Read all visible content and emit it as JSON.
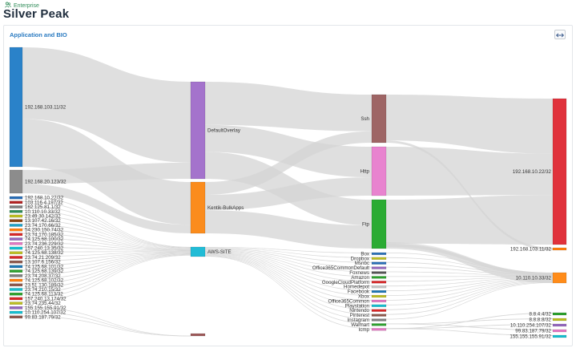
{
  "breadcrumb": {
    "label": "Enterprise",
    "icon": "users-icon"
  },
  "page": {
    "title": "Silver Peak"
  },
  "panel": {
    "title": "Application and BIO",
    "expand_icon": "expand-arrows-icon"
  },
  "chart_data": {
    "type": "sankey",
    "title": "Application and BIO",
    "columns": [
      {
        "name": "source",
        "nodes": [
          {
            "id": "s1",
            "label": "192.168.103.11/32",
            "color": "#2a82c9",
            "value": 100
          },
          {
            "id": "s2",
            "label": "192.168.20.123/32",
            "color": "#8c8c8c",
            "value": 20
          },
          {
            "id": "s3",
            "label": "192.168.10.22/32",
            "color": "#2a6db5",
            "value": 1
          },
          {
            "id": "s4",
            "label": "103.116.4.197/32",
            "color": "#b22222",
            "value": 1
          },
          {
            "id": "s5",
            "label": "162.125.81.1/32",
            "color": "#7f7f7f",
            "value": 1
          },
          {
            "id": "s6",
            "label": "10.110.10.33/32",
            "color": "#2e8b57",
            "value": 1
          },
          {
            "id": "s7",
            "label": "23.49.30.142/32",
            "color": "#bcbd22",
            "value": 1
          },
          {
            "id": "s8",
            "label": "13.107.42.16/32",
            "color": "#8b4513",
            "value": 1
          },
          {
            "id": "s9",
            "label": "23.74.170.66/32",
            "color": "#1fa2c7",
            "value": 1
          },
          {
            "id": "s10",
            "label": "54.230.150.74/32",
            "color": "#ff7f0e",
            "value": 1
          },
          {
            "id": "s11",
            "label": "23.74.170.185/32",
            "color": "#d62728",
            "value": 1
          },
          {
            "id": "s12",
            "label": "74.125.68.100/32",
            "color": "#9467bd",
            "value": 1
          },
          {
            "id": "s13",
            "label": "23.74.236.229/32",
            "color": "#e377c2",
            "value": 1
          },
          {
            "id": "s14",
            "label": "157.240.13.35/32",
            "color": "#17becf",
            "value": 1
          },
          {
            "id": "s15",
            "label": "74.125.68.138/32",
            "color": "#bcbd22",
            "value": 1
          },
          {
            "id": "s16",
            "label": "23.74.21.209/32",
            "color": "#d62728",
            "value": 1
          },
          {
            "id": "s17",
            "label": "13.107.6.156/32",
            "color": "#8c564b",
            "value": 1
          },
          {
            "id": "s18",
            "label": "74.125.68.101/32",
            "color": "#1f77b4",
            "value": 1
          },
          {
            "id": "s19",
            "label": "74.125.68.139/32",
            "color": "#2ca02c",
            "value": 1
          },
          {
            "id": "s20",
            "label": "23.74.208.37/32",
            "color": "#7f7f7f",
            "value": 1
          },
          {
            "id": "s21",
            "label": "74.125.68.102/32",
            "color": "#ff7f0e",
            "value": 1
          },
          {
            "id": "s22",
            "label": "23.51.130.189/32",
            "color": "#8c564b",
            "value": 1
          },
          {
            "id": "s23",
            "label": "23.74.210.15/32",
            "color": "#17becf",
            "value": 1
          },
          {
            "id": "s24",
            "label": "74.125.68.113/32",
            "color": "#2ca02c",
            "value": 1
          },
          {
            "id": "s25",
            "label": "157.240.13.174/32",
            "color": "#d62728",
            "value": 1
          },
          {
            "id": "s26",
            "label": "23.74.235.44/32",
            "color": "#bcbd22",
            "value": 1
          },
          {
            "id": "s27",
            "label": "155.155.155.91/32",
            "color": "#9467bd",
            "value": 1
          },
          {
            "id": "s28",
            "label": "10.110.254.107/32",
            "color": "#17becf",
            "value": 1
          },
          {
            "id": "s29",
            "label": "99.83.187.79/32",
            "color": "#8c564b",
            "value": 1
          }
        ]
      },
      {
        "name": "overlay",
        "nodes": [
          {
            "id": "o1",
            "label": "DefaultOverlay",
            "color": "#a473cc"
          },
          {
            "id": "o2",
            "label": "Kentik-BulkApps",
            "color": "#fb8c1d"
          },
          {
            "id": "o3",
            "label": "AWS-SITE",
            "color": "#22bcd6"
          },
          {
            "id": "o4",
            "label": "",
            "color": "#9e5b5b"
          }
        ]
      },
      {
        "name": "application",
        "nodes": [
          {
            "id": "a1",
            "label": "Ssh",
            "color": "#9e6565"
          },
          {
            "id": "a2",
            "label": "Http",
            "color": "#e883cf"
          },
          {
            "id": "a3",
            "label": "Ftp",
            "color": "#2bab33"
          },
          {
            "id": "a4",
            "label": "Box",
            "color": "#2e72b8"
          },
          {
            "id": "a5",
            "label": "Dropbox",
            "color": "#bcbd22"
          },
          {
            "id": "a6",
            "label": "Msnbc",
            "color": "#2a6db5"
          },
          {
            "id": "a7",
            "label": "Office365CommonDefault",
            "color": "#9467bd"
          },
          {
            "id": "a8",
            "label": "Foxnews",
            "color": "#555555"
          },
          {
            "id": "a9",
            "label": "Amazon",
            "color": "#2ca02c"
          },
          {
            "id": "a10",
            "label": "GoogleCloudPlatform",
            "color": "#d62728"
          },
          {
            "id": "a11",
            "label": "Homedepot",
            "color": "#c7c7c7"
          },
          {
            "id": "a12",
            "label": "Facebook",
            "color": "#1f77b4"
          },
          {
            "id": "a13",
            "label": "Xbox",
            "color": "#bcbd22"
          },
          {
            "id": "a14",
            "label": "Office365Common",
            "color": "#e377c2"
          },
          {
            "id": "a15",
            "label": "Playstation",
            "color": "#17becf"
          },
          {
            "id": "a16",
            "label": "Nintendo",
            "color": "#d62728"
          },
          {
            "id": "a17",
            "label": "Pinterest",
            "color": "#8c564b"
          },
          {
            "id": "a18",
            "label": "Instagram",
            "color": "#7f7f7f"
          },
          {
            "id": "a19",
            "label": "Walmart",
            "color": "#2ca02c"
          },
          {
            "id": "a20",
            "label": "Icmp",
            "color": "#e377c2"
          }
        ]
      },
      {
        "name": "destination",
        "nodes": [
          {
            "id": "d1",
            "label": "192.168.10.22/32",
            "color": "#e0323c"
          },
          {
            "id": "d2",
            "label": "192.168.103.11/32",
            "color": "#ff7f0e"
          },
          {
            "id": "d3",
            "label": "10.110.10.33/32",
            "color": "#ff8c1a"
          },
          {
            "id": "d4",
            "label": "8.8.4.4/32",
            "color": "#2ca02c"
          },
          {
            "id": "d5",
            "label": "8.8.8.8/32",
            "color": "#bcbd22"
          },
          {
            "id": "d6",
            "label": "10.110.254.107/32",
            "color": "#9467bd"
          },
          {
            "id": "d7",
            "label": "99.83.187.79/32",
            "color": "#e377c2"
          },
          {
            "id": "d8",
            "label": "155.155.155.91/32",
            "color": "#17becf"
          }
        ]
      }
    ],
    "links": [
      {
        "source": "s1",
        "target": "o1",
        "value": 60
      },
      {
        "source": "s1",
        "target": "o2",
        "value": 40
      },
      {
        "source": "s2",
        "target": "o1",
        "value": 12
      },
      {
        "source": "s2",
        "target": "o2",
        "value": 8
      },
      {
        "source": "o1",
        "target": "a1",
        "value": 32
      },
      {
        "source": "o1",
        "target": "a2",
        "value": 20
      },
      {
        "source": "o1",
        "target": "a3",
        "value": 20
      },
      {
        "source": "o2",
        "target": "a1",
        "value": 10
      },
      {
        "source": "o2",
        "target": "a2",
        "value": 12
      },
      {
        "source": "o2",
        "target": "a3",
        "value": 18
      },
      {
        "source": "a1",
        "target": "d1",
        "value": 40
      },
      {
        "source": "a2",
        "target": "d1",
        "value": 30
      },
      {
        "source": "a3",
        "target": "d1",
        "value": 36
      },
      {
        "source": "a1",
        "target": "d2",
        "value": 2
      },
      {
        "source": "a3",
        "target": "d3",
        "value": 4
      }
    ]
  }
}
